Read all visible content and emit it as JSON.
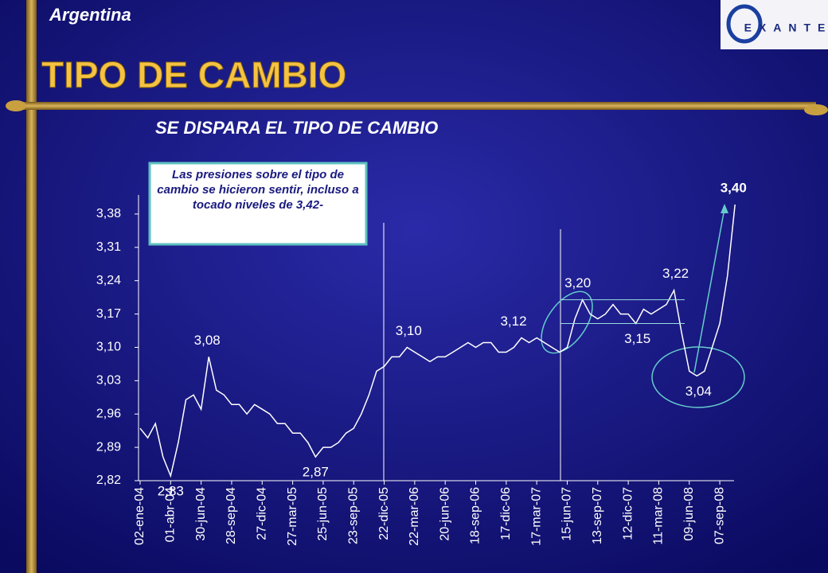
{
  "header": "Argentina",
  "logo": "EXANTE",
  "title": "TIPO DE CAMBIO",
  "chart_data": {
    "type": "line",
    "title": "SE DISPARA EL TIPO DE CAMBIO",
    "annotation": "Las presiones sobre el tipo de cambio se hicieron sentir, incluso a tocado niveles de 3,42-",
    "categories": [
      "02-ene-04",
      null,
      null,
      null,
      "01-abr-04",
      null,
      null,
      null,
      "30-jun-04",
      null,
      null,
      null,
      "28-sep-04",
      null,
      null,
      null,
      "27-dic-04",
      null,
      null,
      null,
      "27-mar-05",
      null,
      null,
      null,
      "25-jun-05",
      null,
      null,
      null,
      "23-sep-05",
      null,
      null,
      null,
      "22-dic-05",
      null,
      null,
      null,
      "22-mar-06",
      null,
      null,
      null,
      "20-jun-06",
      null,
      null,
      null,
      "18-sep-06",
      null,
      null,
      null,
      "17-dic-06",
      null,
      null,
      null,
      "17-mar-07",
      null,
      null,
      null,
      "15-jun-07",
      null,
      null,
      null,
      "13-sep-07",
      null,
      null,
      null,
      "12-dic-07",
      null,
      null,
      null,
      "11-mar-08",
      null,
      null,
      null,
      "09-jun-08",
      null,
      null,
      null,
      "07-sep-08",
      null,
      null
    ],
    "values": [
      2.93,
      2.91,
      2.94,
      2.87,
      2.83,
      2.9,
      2.99,
      3.0,
      2.97,
      3.08,
      3.01,
      3.0,
      2.98,
      2.98,
      2.96,
      2.98,
      2.97,
      2.96,
      2.94,
      2.94,
      2.92,
      2.92,
      2.9,
      2.87,
      2.89,
      2.89,
      2.9,
      2.92,
      2.93,
      2.96,
      3.0,
      3.05,
      3.06,
      3.08,
      3.08,
      3.1,
      3.09,
      3.08,
      3.07,
      3.08,
      3.08,
      3.09,
      3.1,
      3.11,
      3.1,
      3.11,
      3.11,
      3.09,
      3.09,
      3.1,
      3.12,
      3.11,
      3.12,
      3.11,
      3.1,
      3.09,
      3.1,
      3.16,
      3.2,
      3.17,
      3.16,
      3.17,
      3.19,
      3.17,
      3.17,
      3.15,
      3.18,
      3.17,
      3.18,
      3.19,
      3.22,
      3.13,
      3.05,
      3.04,
      3.05,
      3.1,
      3.15,
      3.25,
      3.4
    ],
    "value_labels": [
      null,
      null,
      null,
      null,
      "2,83",
      null,
      null,
      null,
      null,
      "3,08",
      null,
      null,
      null,
      null,
      null,
      null,
      null,
      null,
      null,
      null,
      null,
      null,
      null,
      "2,87",
      null,
      null,
      null,
      null,
      null,
      null,
      null,
      null,
      null,
      null,
      null,
      "3,10",
      null,
      null,
      null,
      null,
      null,
      null,
      null,
      null,
      null,
      null,
      null,
      null,
      null,
      null,
      "3,12",
      null,
      null,
      null,
      null,
      null,
      null,
      null,
      "3,20",
      null,
      null,
      null,
      null,
      null,
      null,
      "3,15",
      null,
      null,
      null,
      null,
      "3,22",
      null,
      null,
      "3,04",
      null,
      null,
      null,
      null,
      "3,40"
    ],
    "color": "#ffffff",
    "ylim": [
      2.82,
      3.42
    ],
    "yticks": [
      {
        "value": 2.82,
        "label": "2,82"
      },
      {
        "value": 2.89,
        "label": "2,89"
      },
      {
        "value": 2.96,
        "label": "2,96"
      },
      {
        "value": 3.03,
        "label": "3,03"
      },
      {
        "value": 3.1,
        "label": "3,10"
      },
      {
        "value": 3.17,
        "label": "3,17"
      },
      {
        "value": 3.24,
        "label": "3,24"
      },
      {
        "value": 3.31,
        "label": "3,31"
      },
      {
        "value": 3.38,
        "label": "3,38"
      }
    ]
  }
}
